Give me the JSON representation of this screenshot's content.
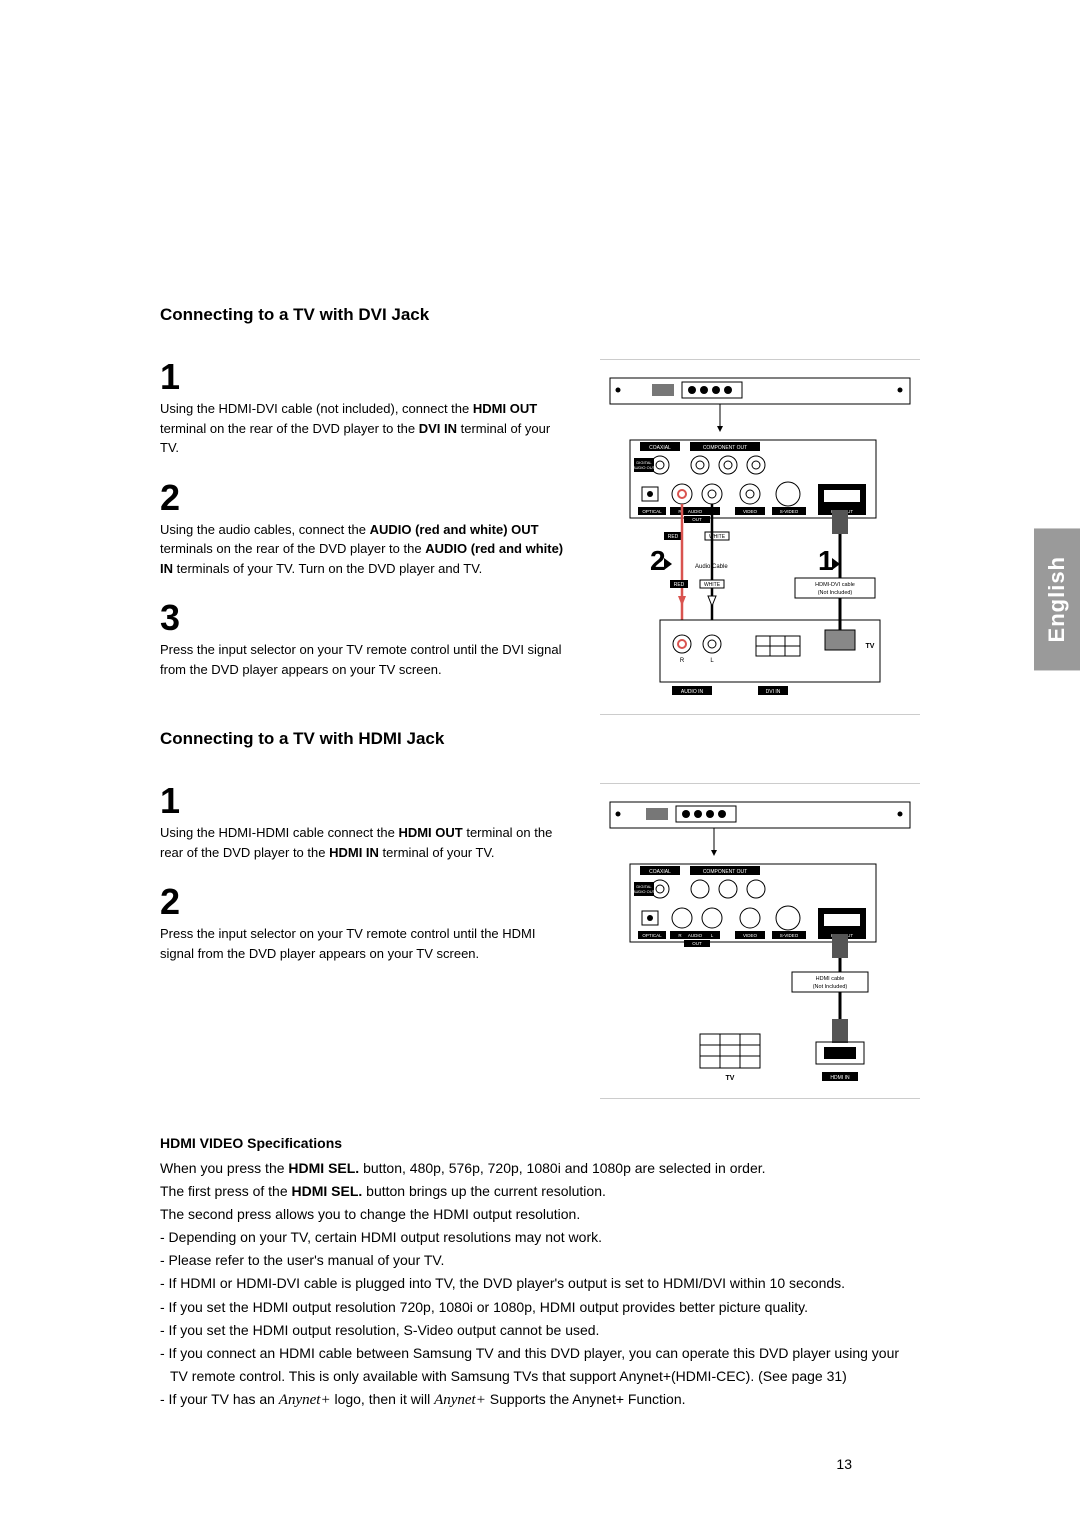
{
  "side_tab": "English",
  "page_number": "13",
  "dvi": {
    "title": "Connecting to a TV with DVI Jack",
    "steps": [
      {
        "n": "1",
        "html": "Using the HDMI-DVI cable (not included), connect the <b>HDMI OUT</b> terminal on the rear of the DVD player to the <b>DVI IN</b> terminal of your TV."
      },
      {
        "n": "2",
        "html": "Using the audio cables, connect the <b>AUDIO (red and white) OUT</b> terminals on the rear of the DVD player to the <b>AUDIO (red and white) IN</b> terminals of your TV. Turn on the DVD player and TV."
      },
      {
        "n": "3",
        "html": "Press the input selector on your TV remote control until the DVI signal from the DVD player appears on your TV screen."
      }
    ],
    "diagram": {
      "labels": {
        "coaxial": "COAXIAL",
        "component_out": "COMPONENT OUT",
        "digital_audio_out": "DIGITAL\nAUDIO OUT",
        "optical": "OPTICAL",
        "audio": "AUDIO",
        "video": "VIDEO",
        "svideo": "S-VIDEO",
        "hdmi_out": "HDMI OUT",
        "out": "OUT",
        "red": "RED",
        "white": "WHITE",
        "audio_cable": "Audio Cable",
        "cable": "HDMI-DVI cable\n(Not Included)",
        "audio_in": "AUDIO IN",
        "dvi_in": "DVI IN",
        "tv": "TV",
        "r": "R",
        "l": "L"
      },
      "callouts": [
        "2",
        "1"
      ]
    }
  },
  "hdmi": {
    "title": "Connecting to a TV with HDMI Jack",
    "steps": [
      {
        "n": "1",
        "html": "Using the HDMI-HDMI cable connect the <b>HDMI OUT</b> terminal on the rear of the DVD player to the <b>HDMI IN</b> terminal of your TV."
      },
      {
        "n": "2",
        "html": "Press the input selector on your TV remote control until the HDMI signal from the DVD player appears on your TV screen."
      }
    ],
    "diagram": {
      "labels": {
        "coaxial": "COAXIAL",
        "component_out": "COMPONENT OUT",
        "digital_audio_out": "DIGITAL\nAUDIO OUT",
        "optical": "OPTICAL",
        "audio": "AUDIO",
        "video": "VIDEO",
        "svideo": "S-VIDEO",
        "hdmi_out": "HDMI OUT",
        "out": "OUT",
        "cable": "HDMI cable\n(Not Included)",
        "tv": "TV",
        "hdmi_in": "HDMI IN",
        "r": "R",
        "l": "L"
      }
    }
  },
  "spec": {
    "title": "HDMI VIDEO Specifications",
    "lines": [
      "When you press the <b>HDMI SEL.</b> button, 480p, 576p, 720p, 1080i and 1080p are selected in order.",
      "The first press of the <b>HDMI SEL.</b> button brings up the current resolution.",
      "The second press allows you to change the HDMI output resolution.",
      "- Depending on your TV, certain HDMI output resolutions may not work.",
      "- Please refer to the user's manual of your TV.",
      "- If HDMI or HDMI-DVI cable is plugged into TV, the DVD player's output is set to HDMI/DVI within 10 seconds.",
      "- If you set the HDMI output resolution 720p, 1080i or 1080p, HDMI output provides better picture quality.",
      "- If you set the HDMI output resolution, S-Video output cannot be used.",
      "- If you connect an HDMI cable between Samsung TV and this DVD player, you can operate this DVD player using your TV remote control. This is only available with Samsung TVs that support Anynet+(HDMI-CEC). (See page 31)",
      "- If your TV has an <span class=\"anynet\">Anynet+</span> logo, then it will <span class=\"anynet\">Anynet+</span> Supports the Anynet+ Function."
    ]
  },
  "colors": {
    "red": "#d9534f",
    "white": "#ffffff",
    "black": "#000000",
    "grey": "#888888",
    "ltgrey": "#cccccc",
    "tab": "#9a9a9a"
  }
}
